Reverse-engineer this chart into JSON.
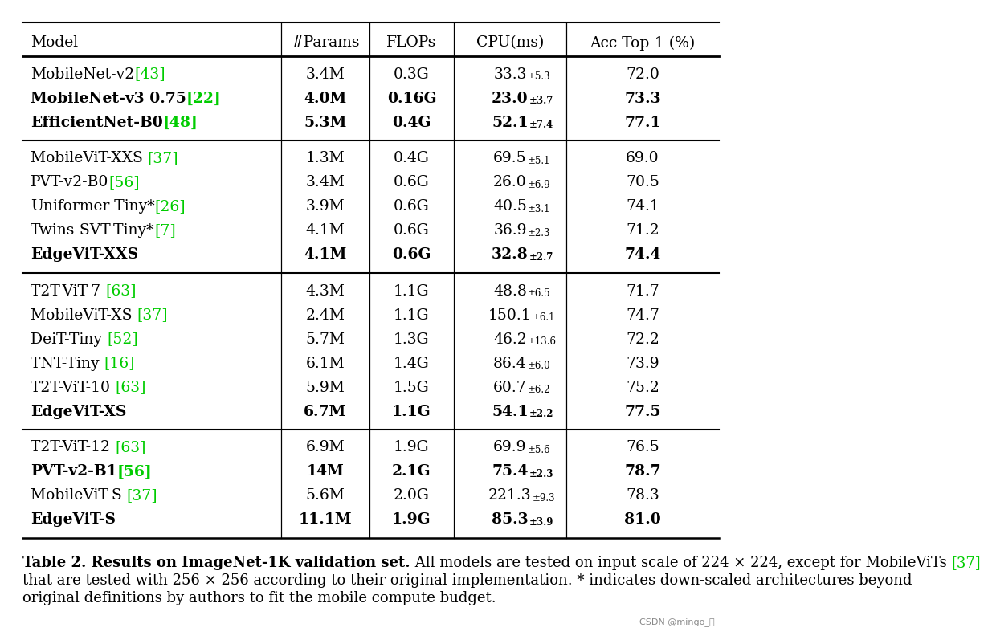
{
  "headers": [
    "Model",
    "#Params",
    "FLOPs",
    "CPU(ms)",
    "Acc Top-1 (%)"
  ],
  "groups": [
    {
      "rows": [
        {
          "model": "MobileNet-v2",
          "cite": "[43]",
          "params": "3.4M",
          "flops": "0.3G",
          "cpu_main": "33.3",
          "cpu_sub": "±5.3",
          "acc": "72.0",
          "bold": false
        },
        {
          "model": "MobileNet-v3 0.75",
          "cite": "[22]",
          "params": "4.0M",
          "flops": "0.16G",
          "cpu_main": "23.0",
          "cpu_sub": "±3.7",
          "acc": "73.3",
          "bold": true
        },
        {
          "model": "EfficientNet-B0",
          "cite": "[48]",
          "params": "5.3M",
          "flops": "0.4G",
          "cpu_main": "52.1",
          "cpu_sub": "±7.4",
          "acc": "77.1",
          "bold": true
        }
      ]
    },
    {
      "rows": [
        {
          "model": "MobileViT-XXS ",
          "cite": "[37]",
          "params": "1.3M",
          "flops": "0.4G",
          "cpu_main": "69.5",
          "cpu_sub": "±5.1",
          "acc": "69.0",
          "bold": false
        },
        {
          "model": "PVT-v2-B0",
          "cite": "[56]",
          "params": "3.4M",
          "flops": "0.6G",
          "cpu_main": "26.0",
          "cpu_sub": "±6.9",
          "acc": "70.5",
          "bold": false
        },
        {
          "model": "Uniformer-Tiny*",
          "cite": "[26]",
          "params": "3.9M",
          "flops": "0.6G",
          "cpu_main": "40.5",
          "cpu_sub": "±3.1",
          "acc": "74.1",
          "bold": false
        },
        {
          "model": "Twins-SVT-Tiny*",
          "cite": "[7]",
          "params": "4.1M",
          "flops": "0.6G",
          "cpu_main": "36.9",
          "cpu_sub": "±2.3",
          "acc": "71.2",
          "bold": false
        },
        {
          "model": "EdgeViT-XXS",
          "cite": "",
          "params": "4.1M",
          "flops": "0.6G",
          "cpu_main": "32.8",
          "cpu_sub": "±2.7",
          "acc": "74.4",
          "bold": true
        }
      ]
    },
    {
      "rows": [
        {
          "model": "T2T-ViT-7 ",
          "cite": "[63]",
          "params": "4.3M",
          "flops": "1.1G",
          "cpu_main": "48.8",
          "cpu_sub": "±6.5",
          "acc": "71.7",
          "bold": false
        },
        {
          "model": "MobileViT-XS ",
          "cite": "[37]",
          "params": "2.4M",
          "flops": "1.1G",
          "cpu_main": "150.1",
          "cpu_sub": "±6.1",
          "acc": "74.7",
          "bold": false
        },
        {
          "model": "DeiT-Tiny ",
          "cite": "[52]",
          "params": "5.7M",
          "flops": "1.3G",
          "cpu_main": "46.2",
          "cpu_sub": "±13.6",
          "acc": "72.2",
          "bold": false
        },
        {
          "model": "TNT-Tiny ",
          "cite": "[16]",
          "params": "6.1M",
          "flops": "1.4G",
          "cpu_main": "86.4",
          "cpu_sub": "±6.0",
          "acc": "73.9",
          "bold": false
        },
        {
          "model": "T2T-ViT-10 ",
          "cite": "[63]",
          "params": "5.9M",
          "flops": "1.5G",
          "cpu_main": "60.7",
          "cpu_sub": "±6.2",
          "acc": "75.2",
          "bold": false
        },
        {
          "model": "EdgeViT-XS",
          "cite": "",
          "params": "6.7M",
          "flops": "1.1G",
          "cpu_main": "54.1",
          "cpu_sub": "±2.2",
          "acc": "77.5",
          "bold": true
        }
      ]
    },
    {
      "rows": [
        {
          "model": "T2T-ViT-12 ",
          "cite": "[63]",
          "params": "6.9M",
          "flops": "1.9G",
          "cpu_main": "69.9",
          "cpu_sub": "±5.6",
          "acc": "76.5",
          "bold": false
        },
        {
          "model": "PVT-v2-B1",
          "cite": "[56]",
          "params": "14M",
          "flops": "2.1G",
          "cpu_main": "75.4",
          "cpu_sub": "±2.3",
          "acc": "78.7",
          "bold": true
        },
        {
          "model": "MobileViT-S ",
          "cite": "[37]",
          "params": "5.6M",
          "flops": "2.0G",
          "cpu_main": "221.3",
          "cpu_sub": "±9.3",
          "acc": "78.3",
          "bold": false
        },
        {
          "model": "EdgeViT-S",
          "cite": "",
          "params": "11.1M",
          "flops": "1.9G",
          "cpu_main": "85.3",
          "cpu_sub": "±3.9",
          "acc": "81.0",
          "bold": true
        }
      ]
    }
  ],
  "caption_bold": "Table 2. Results on ImageNet-1K validation set.",
  "caption_rest": " All models are tested on input scale of 224 × 224, except for MobileViTs [37] that are tested with 256 × 256 according to their original implementation. * indicates down-scaled architectures beyond original definitions by authors to fit the mobile compute budget.",
  "watermark": "CSDN @mingo_抣",
  "green_color": "#00cc00",
  "bg_color": "#ffffff"
}
